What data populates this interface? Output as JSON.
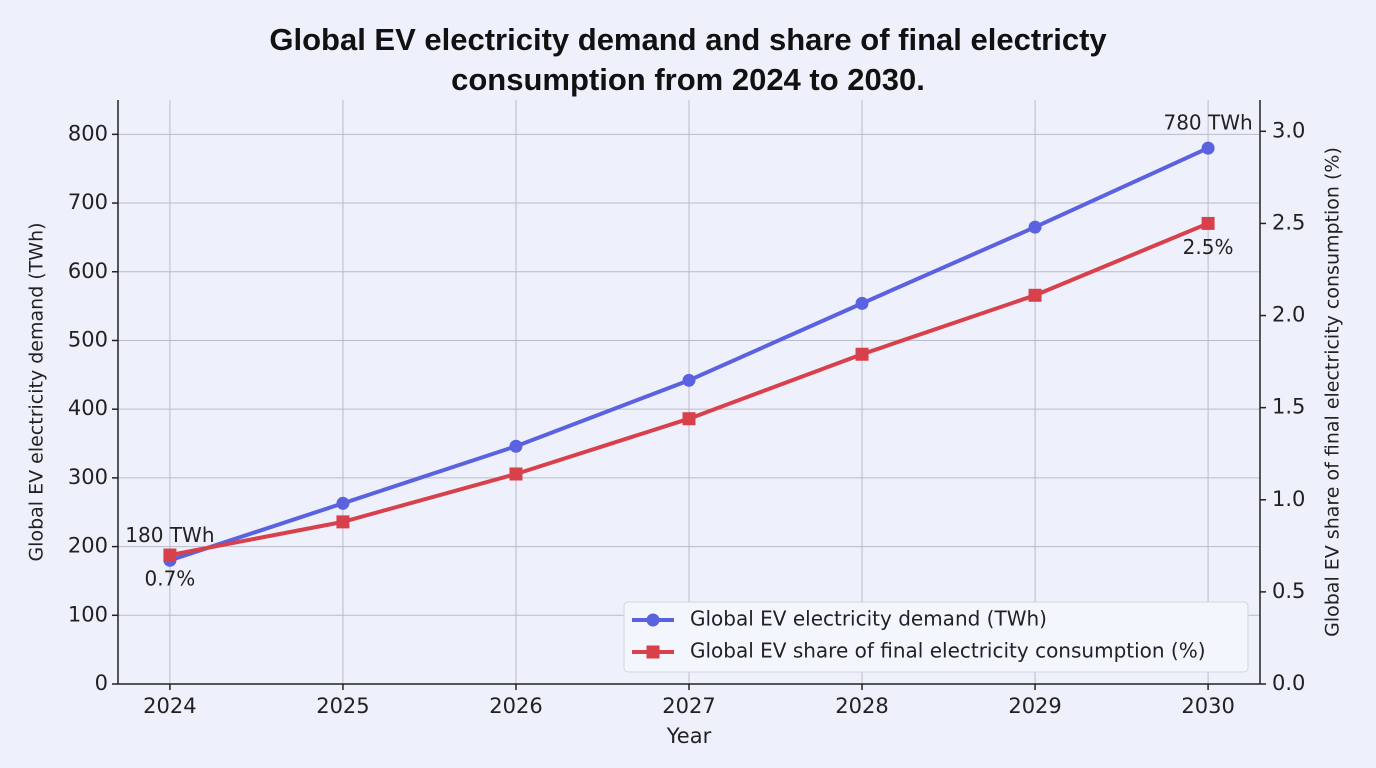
{
  "chart_data": {
    "type": "line",
    "title": "Global EV electricity demand and share of final electricty\nconsumption from 2024 to 2030.",
    "xlabel": "Year",
    "ylabel": "Global EV electricity demand (TWh)",
    "y2label": "Global EV share of final electricity consumption (%)",
    "x": [
      2024,
      2025,
      2026,
      2027,
      2028,
      2029,
      2030
    ],
    "xlim": [
      2023.7,
      2030.3
    ],
    "xticks": [
      2024,
      2025,
      2026,
      2027,
      2028,
      2029,
      2030
    ],
    "ylim": [
      0,
      850
    ],
    "yticks": [
      0,
      100,
      200,
      300,
      400,
      500,
      600,
      700,
      800
    ],
    "y2lim": [
      0,
      3.17
    ],
    "y2ticks": [
      {
        "value": 0,
        "label": "0.0"
      },
      0.5,
      {
        "value": 1,
        "label": "1.0"
      },
      1.5,
      {
        "value": 2,
        "label": "2.0"
      },
      2.5,
      {
        "value": 3,
        "label": "3.0"
      }
    ],
    "grid": true,
    "legend": "lower right",
    "series": [
      {
        "name": "Global EV electricity demand (TWh)",
        "color": "#5a62e0",
        "marker": "circle",
        "values": [
          180,
          263,
          346,
          442,
          554,
          665,
          780
        ],
        "value_labels": [
          "180 TWh",
          null,
          null,
          null,
          null,
          null,
          "780 TWh"
        ]
      },
      {
        "name": "Global EV share of final electricity consumption (%)",
        "color": "#d8404b",
        "marker": "square",
        "axis": "y2",
        "values": [
          0.7,
          0.88,
          1.14,
          1.44,
          1.79,
          2.11,
          2.5
        ],
        "value_labels": [
          "0.7%",
          null,
          null,
          null,
          null,
          null,
          "2.5%"
        ]
      }
    ]
  }
}
